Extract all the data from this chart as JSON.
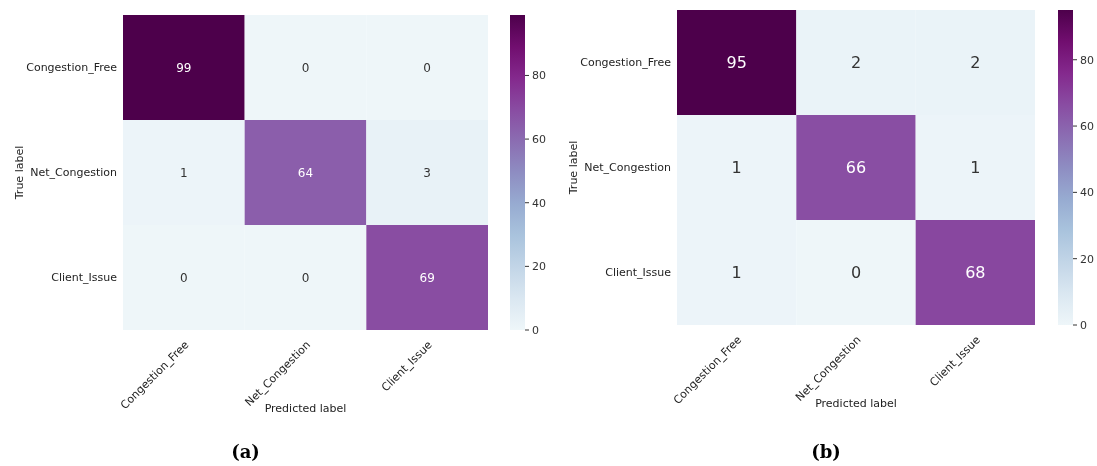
{
  "chart_data": [
    {
      "type": "heatmap",
      "categories": [
        "Congestion_Free",
        "Net_Congestion",
        "Client_Issue"
      ],
      "y_categories": [
        "Congestion_Free",
        "Net_Congestion",
        "Client_Issue"
      ],
      "cells": [
        [
          99,
          0,
          0
        ],
        [
          1,
          64,
          3
        ],
        [
          0,
          0,
          69
        ]
      ],
      "clim": [
        0,
        99
      ],
      "cticks": [
        0,
        20,
        40,
        60,
        80
      ],
      "xlabel": "Predicted label",
      "ylabel": "True label",
      "data_labels": true,
      "annotations": [
        "(a)"
      ]
    },
    {
      "type": "heatmap",
      "categories": [
        "Congestion_Free",
        "Net_Congestion",
        "Client_Issue"
      ],
      "y_categories": [
        "Congestion_Free",
        "Net_Congestion",
        "Client_Issue"
      ],
      "cells": [
        [
          95,
          2,
          2
        ],
        [
          1,
          66,
          1
        ],
        [
          1,
          0,
          68
        ]
      ],
      "clim": [
        0,
        95
      ],
      "cticks": [
        0,
        20,
        40,
        60,
        80
      ],
      "xlabel": "Predicted label",
      "ylabel": "True label",
      "data_labels": true,
      "annotations": [
        "(b)"
      ]
    }
  ]
}
